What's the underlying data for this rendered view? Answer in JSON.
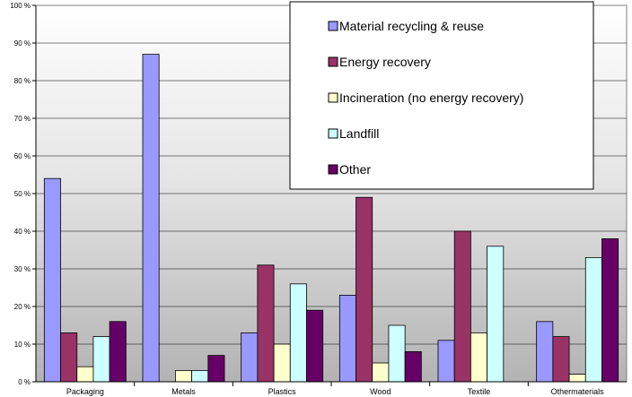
{
  "chart_data": {
    "type": "bar",
    "categories": [
      "Packaging",
      "Metals",
      "Plastics",
      "Wood",
      "Textile",
      "Othermaterials"
    ],
    "series": [
      {
        "name": "Material recycling & reuse",
        "color": "#9999ff",
        "values": [
          54,
          87,
          13,
          23,
          11,
          16
        ]
      },
      {
        "name": "Energy recovery",
        "color": "#993366",
        "values": [
          13,
          0,
          31,
          49,
          40,
          12
        ]
      },
      {
        "name": "Incineration (no energy recovery)",
        "color": "#ffffcc",
        "values": [
          4,
          3,
          10,
          5,
          13,
          2
        ]
      },
      {
        "name": "Landfill",
        "color": "#ccffff",
        "values": [
          12,
          3,
          26,
          15,
          36,
          33
        ]
      },
      {
        "name": "Other",
        "color": "#660066",
        "values": [
          16,
          7,
          19,
          8,
          0,
          38
        ]
      }
    ],
    "yticks": [
      "0 %",
      "10 %",
      "20 %",
      "30 %",
      "40 %",
      "50 %",
      "60 %",
      "70 %",
      "80 %",
      "90 %",
      "100 %"
    ],
    "ylim": [
      0,
      100
    ],
    "grid": true,
    "legend_position": "top-right",
    "title": "",
    "xlabel": "",
    "ylabel": ""
  }
}
